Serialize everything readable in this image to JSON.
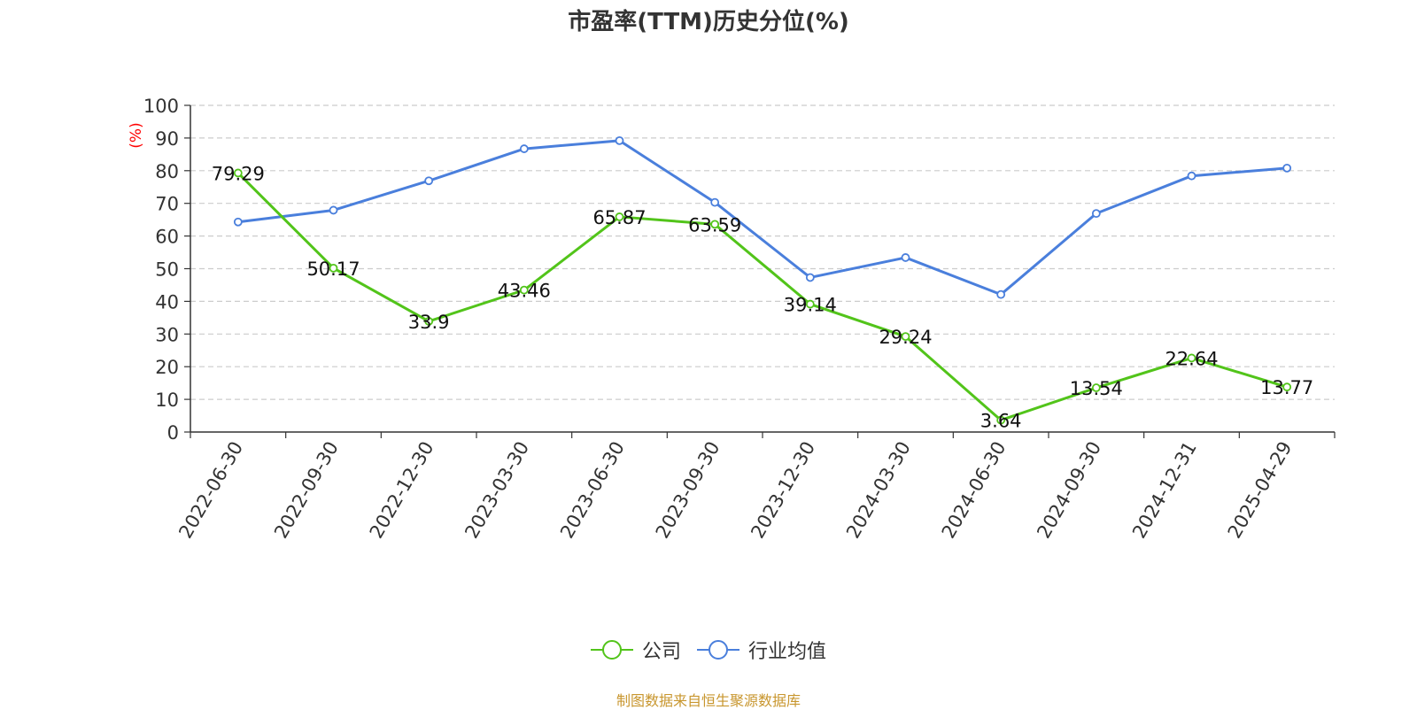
{
  "chart_data": {
    "type": "line",
    "title": "市盈率(TTM)历史分位(%)",
    "ylabel": "(%)",
    "ylim": [
      0,
      100
    ],
    "yticks": [
      0,
      10,
      20,
      30,
      40,
      50,
      60,
      70,
      80,
      90,
      100
    ],
    "grid": true,
    "legend_position": "bottom",
    "categories": [
      "2022-06-30",
      "2022-09-30",
      "2022-12-30",
      "2023-03-30",
      "2023-06-30",
      "2023-09-30",
      "2023-12-30",
      "2024-03-30",
      "2024-06-30",
      "2024-09-30",
      "2024-12-31",
      "2025-04-29"
    ],
    "series": [
      {
        "name": "公司",
        "color": "#52c41a",
        "values": [
          79.29,
          50.17,
          33.9,
          43.46,
          65.87,
          63.59,
          39.14,
          29.24,
          3.64,
          13.54,
          22.64,
          13.77
        ],
        "labels": [
          "79.29",
          "50.17",
          "33.9",
          "43.46",
          "65.87",
          "63.59",
          "39.14",
          "29.24",
          "3.64",
          "13.54",
          "22.64",
          "13.77"
        ]
      },
      {
        "name": "行业均值",
        "color": "#4a7fdc",
        "values": [
          64.3,
          67.9,
          76.9,
          86.7,
          89.2,
          70.3,
          47.3,
          53.4,
          42.1,
          66.9,
          78.4,
          80.8
        ]
      }
    ]
  },
  "axis_colors": {
    "ylabel": "#ff0000",
    "axis": "#333333",
    "grid": "#cccccc"
  },
  "source": {
    "text": "制图数据来自恒生聚源数据库",
    "color": "#c8962e"
  }
}
